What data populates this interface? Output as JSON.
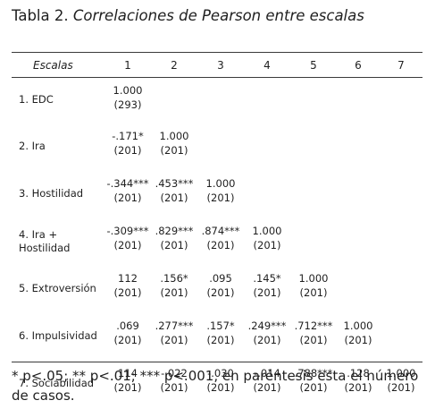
{
  "title": {
    "lead": "Tabla 2.",
    "rest": "Correlaciones de Pearson entre escalas"
  },
  "header": [
    "Escalas",
    "1",
    "2",
    "3",
    "4",
    "5",
    "6",
    "7"
  ],
  "rows": [
    {
      "label": [
        "1. EDC"
      ],
      "cells": [
        [
          "1.000",
          "(293)"
        ],
        [
          "",
          ""
        ],
        [
          "",
          ""
        ],
        [
          "",
          ""
        ],
        [
          "",
          ""
        ],
        [
          "",
          ""
        ],
        [
          "",
          ""
        ]
      ]
    },
    {
      "label": [
        "2. Ira"
      ],
      "cells": [
        [
          "-.171*",
          "(201)"
        ],
        [
          "1.000",
          "(201)"
        ],
        [
          "",
          ""
        ],
        [
          "",
          ""
        ],
        [
          "",
          ""
        ],
        [
          "",
          ""
        ],
        [
          "",
          ""
        ]
      ]
    },
    {
      "label": [
        "3. Hostilidad"
      ],
      "cells": [
        [
          "-.344***",
          "(201)"
        ],
        [
          ".453***",
          "(201)"
        ],
        [
          "1.000",
          "(201)"
        ],
        [
          "",
          ""
        ],
        [
          "",
          ""
        ],
        [
          "",
          ""
        ],
        [
          "",
          ""
        ]
      ]
    },
    {
      "label": [
        "4. Ira +",
        "Hostilidad"
      ],
      "cells": [
        [
          "-.309***",
          "(201)"
        ],
        [
          ".829***",
          "(201)"
        ],
        [
          ".874***",
          "(201)"
        ],
        [
          "1.000",
          "(201)"
        ],
        [
          "",
          ""
        ],
        [
          "",
          ""
        ],
        [
          "",
          ""
        ]
      ]
    },
    {
      "label": [
        "5. Extroversión"
      ],
      "cells": [
        [
          "112",
          "(201)"
        ],
        [
          ".156*",
          "(201)"
        ],
        [
          ".095",
          "(201)"
        ],
        [
          ".145*",
          "(201)"
        ],
        [
          "1.000",
          "(201)"
        ],
        [
          "",
          ""
        ],
        [
          "",
          ""
        ]
      ]
    },
    {
      "label": [
        "6. Impulsividad"
      ],
      "cells": [
        [
          ".069",
          "(201)"
        ],
        [
          ".277***",
          "(201)"
        ],
        [
          ".157*",
          "(201)"
        ],
        [
          ".249***",
          "(201)"
        ],
        [
          ".712***",
          "(201)"
        ],
        [
          "1.000",
          "(201)"
        ],
        [
          "",
          ""
        ]
      ]
    },
    {
      "label": [
        "7. Sociabilidad"
      ],
      "cells": [
        [
          "114",
          "(201)"
        ],
        [
          "-.022",
          "(201)"
        ],
        [
          "-.030",
          "(201)"
        ],
        [
          "-.014",
          "(201)"
        ],
        [
          ".788***",
          "(201)"
        ],
        [
          ".128",
          "(201)"
        ],
        [
          "1.000",
          "(201)"
        ]
      ]
    }
  ],
  "note": "* p<.05; ** p<.01; *** p<.001, en paréntesis esta el número de casos."
}
